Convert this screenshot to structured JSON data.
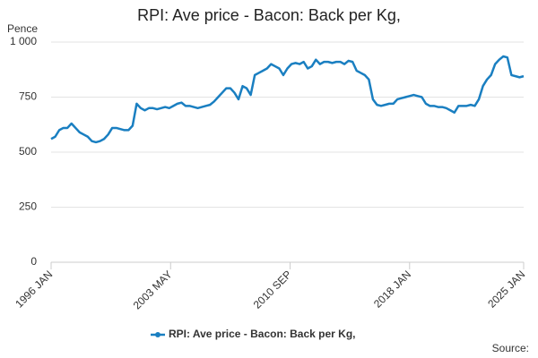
{
  "chart_data": {
    "type": "line",
    "title": "RPI: Ave price - Bacon: Back per Kg,",
    "y_label": "Pence",
    "source": "Source:",
    "xlim": [
      1996,
      2025
    ],
    "xticks": [
      {
        "value": 1996,
        "label": "1996 JAN"
      },
      {
        "value": 2003.333,
        "label": "2003 MAY"
      },
      {
        "value": 2010.667,
        "label": "2010 SEP"
      },
      {
        "value": 2018,
        "label": "2018 JAN"
      },
      {
        "value": 2025,
        "label": "2025 JAN"
      }
    ],
    "ylim": [
      0,
      1000
    ],
    "yticks": [
      0,
      250,
      500,
      750,
      {
        "value": 1000,
        "label": "1 000"
      }
    ],
    "grid": true,
    "series": [
      {
        "name": "RPI: Ave price - Bacon: Back per Kg,",
        "color": "#1a7fc1",
        "x": [
          1996,
          1996.25,
          1996.5,
          1996.75,
          1997,
          1997.25,
          1997.5,
          1997.75,
          1998,
          1998.25,
          1998.5,
          1998.75,
          1999,
          1999.25,
          1999.5,
          1999.75,
          2000,
          2000.25,
          2000.5,
          2000.75,
          2001,
          2001.25,
          2001.5,
          2001.75,
          2002,
          2002.25,
          2002.5,
          2002.75,
          2003,
          2003.25,
          2003.5,
          2003.75,
          2004,
          2004.25,
          2004.5,
          2004.75,
          2005,
          2005.25,
          2005.5,
          2005.75,
          2006,
          2006.25,
          2006.5,
          2006.75,
          2007,
          2007.25,
          2007.5,
          2007.75,
          2008,
          2008.25,
          2008.5,
          2008.75,
          2009,
          2009.25,
          2009.5,
          2009.75,
          2010,
          2010.25,
          2010.5,
          2010.75,
          2011,
          2011.25,
          2011.5,
          2011.75,
          2012,
          2012.25,
          2012.5,
          2012.75,
          2013,
          2013.25,
          2013.5,
          2013.75,
          2014,
          2014.25,
          2014.5,
          2014.75,
          2015,
          2015.25,
          2015.5,
          2015.75,
          2016,
          2016.25,
          2016.5,
          2016.75,
          2017,
          2017.25,
          2017.5,
          2017.75,
          2018,
          2018.25,
          2018.5,
          2018.75,
          2019,
          2019.25,
          2019.5,
          2019.75,
          2020,
          2020.25,
          2020.5,
          2020.75,
          2021,
          2021.25,
          2021.5,
          2021.75,
          2022,
          2022.25,
          2022.5,
          2022.75,
          2023,
          2023.25,
          2023.5,
          2023.75,
          2024,
          2024.25,
          2024.5,
          2024.75,
          2025
        ],
        "values": [
          560,
          570,
          600,
          610,
          610,
          630,
          610,
          590,
          580,
          570,
          550,
          545,
          550,
          560,
          580,
          610,
          610,
          605,
          600,
          600,
          620,
          720,
          700,
          690,
          700,
          700,
          695,
          700,
          705,
          700,
          710,
          720,
          725,
          710,
          710,
          705,
          700,
          705,
          710,
          715,
          730,
          750,
          770,
          790,
          790,
          770,
          740,
          800,
          790,
          760,
          850,
          860,
          870,
          880,
          900,
          890,
          880,
          850,
          880,
          900,
          905,
          900,
          910,
          880,
          890,
          920,
          900,
          910,
          910,
          905,
          910,
          910,
          900,
          915,
          910,
          870,
          860,
          850,
          830,
          740,
          715,
          710,
          715,
          720,
          720,
          740,
          745,
          750,
          755,
          760,
          755,
          750,
          720,
          710,
          710,
          705,
          705,
          700,
          690,
          680,
          710,
          710,
          710,
          715,
          710,
          740,
          800,
          830,
          850,
          900,
          920,
          935,
          930,
          850,
          845,
          840,
          845
        ]
      }
    ]
  }
}
